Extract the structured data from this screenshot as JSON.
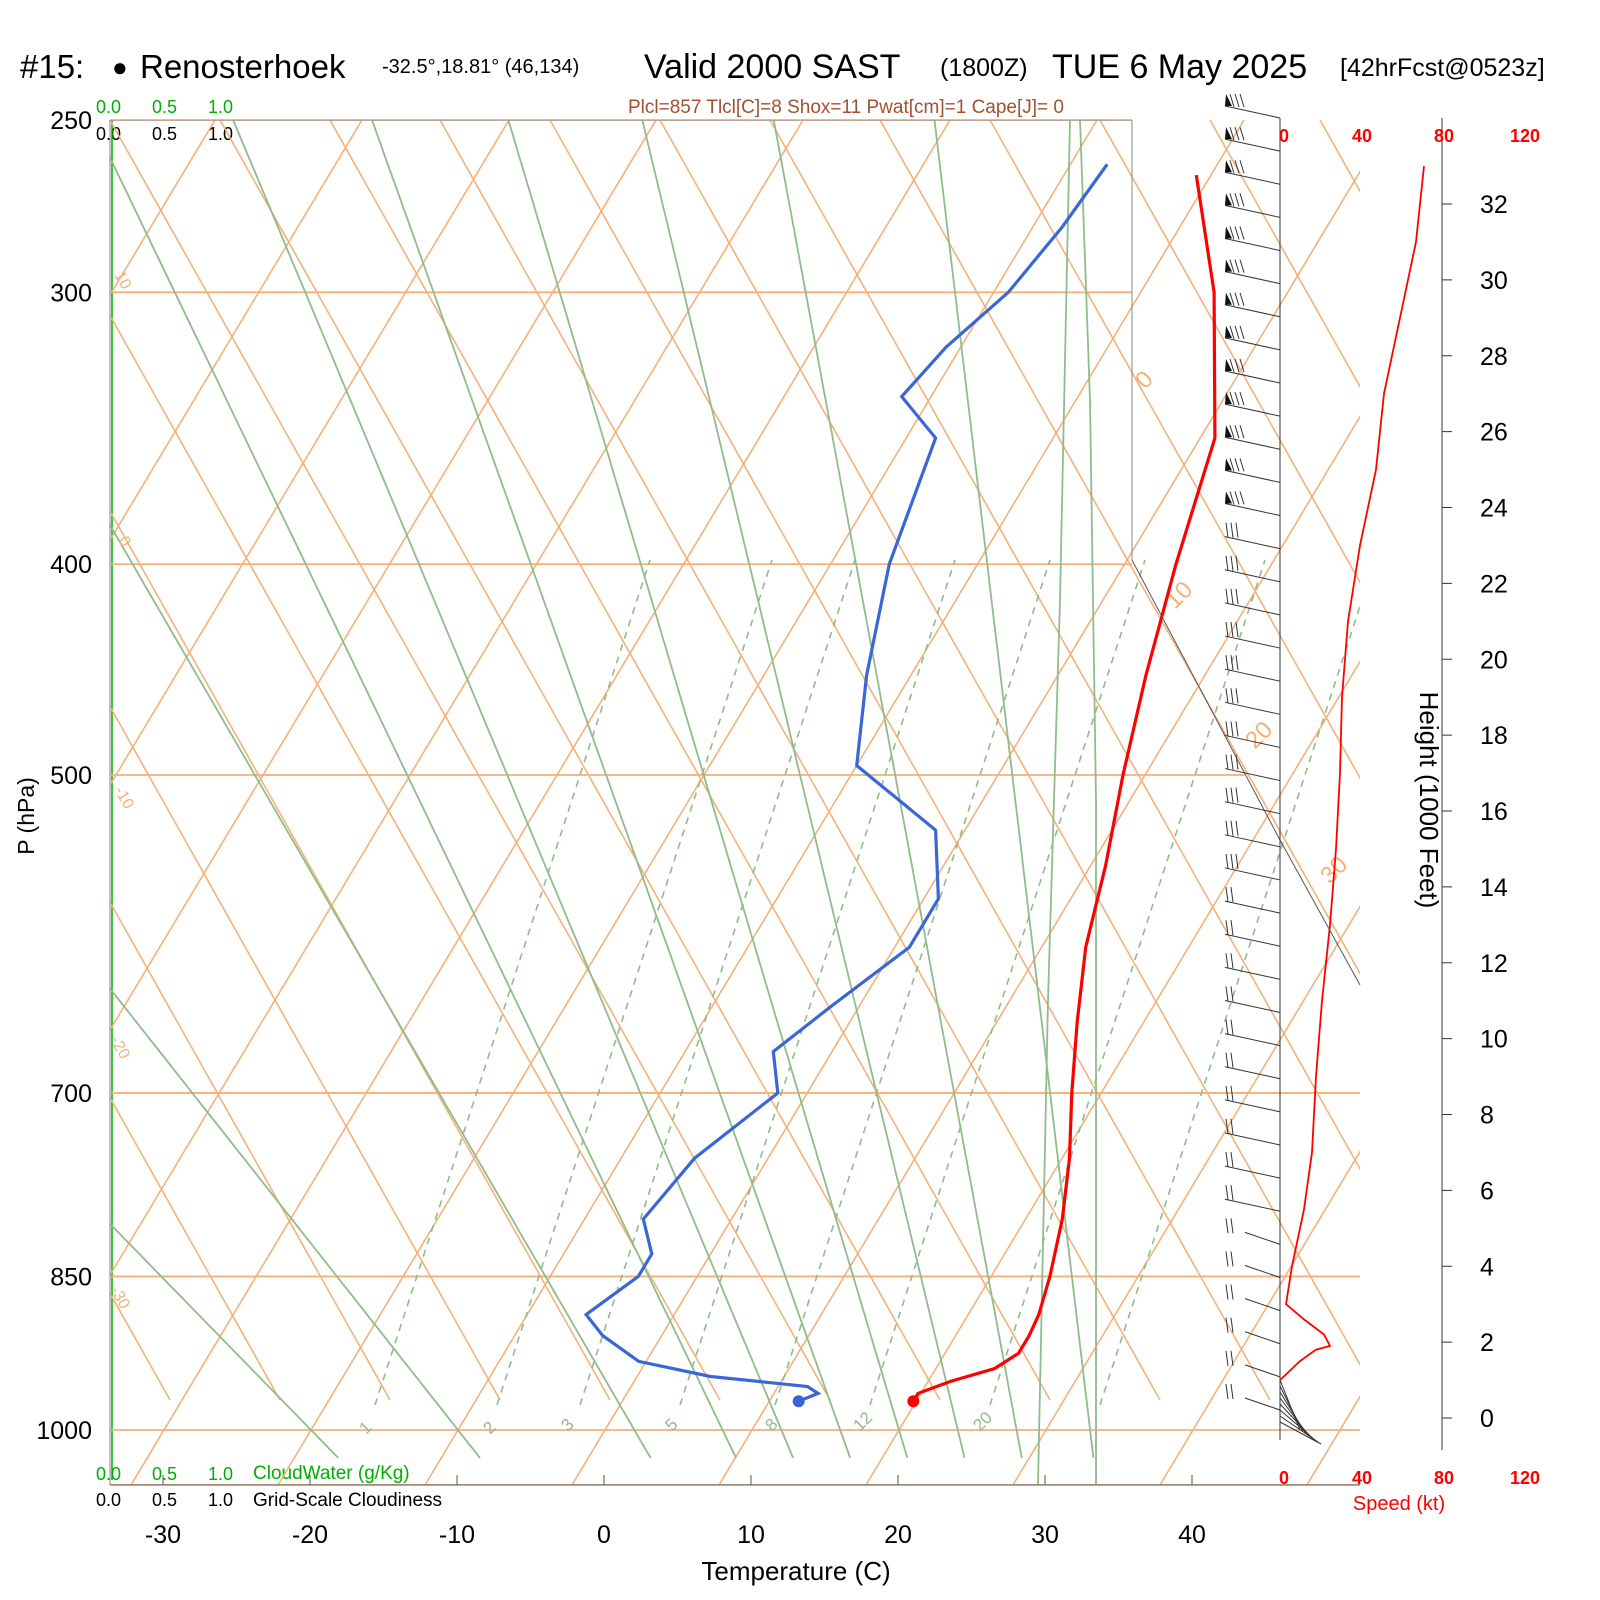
{
  "header": {
    "station_id": "#15:",
    "station_marker": "●",
    "station_name": "Renosterhoek",
    "coords": "-32.5°,18.81° (46,134)",
    "valid_label": "Valid 2000 SAST",
    "zulu": "(1800Z)",
    "date": "TUE 6 May 2025",
    "forecast": "[42hrFcst@0523z]"
  },
  "stats_line": "Plcl=857 Tlcl[C]=8 Shox=11 Pwat[cm]=1 Cape[J]= 0",
  "colors": {
    "temperature": "#ff0000",
    "dewpoint": "#3a66d6",
    "isotherm": "#f5b07a",
    "adiabat": "#8fbc8a",
    "mixing_ratio": "#8fbc8a",
    "stats": "#a0522d",
    "cloud_green": "#00b000",
    "speed_red": "#ff0000"
  },
  "cloud_scales": {
    "top_green": [
      "0.0",
      "0.5",
      "1.0"
    ],
    "top_black": [
      "0.0",
      "0.5",
      "1.0"
    ],
    "bottom_green": [
      "0.0",
      "0.5",
      "1.0"
    ],
    "bottom_green_label": "CloudWater (g/Kg)",
    "bottom_black": [
      "0.0",
      "0.5",
      "1.0"
    ],
    "bottom_black_label": "Grid-Scale Cloudiness"
  },
  "chart_data": {
    "type": "line",
    "subtype": "skew-T log-P sounding",
    "xlabel": "Temperature (C)",
    "ylabel": "P (hPa)",
    "xlim": [
      -33,
      47
    ],
    "pressure_range": [
      1000,
      250
    ],
    "x_ticks": [
      -30,
      -20,
      -10,
      0,
      10,
      20,
      30,
      40
    ],
    "p_ticks": [
      250,
      300,
      400,
      500,
      700,
      850,
      1000
    ],
    "isotherm_labels": [
      "10",
      "0",
      "-10",
      "-20",
      "-30",
      "0",
      "10",
      "20",
      "30"
    ],
    "mixing_ratio_labels": [
      "1",
      "2",
      "3",
      "5",
      "8",
      "12",
      "20"
    ],
    "series": [
      {
        "name": "Temperature",
        "points": [
          [
            19.8,
            970
          ],
          [
            19.8,
            962
          ],
          [
            21.5,
            950
          ],
          [
            24,
            937
          ],
          [
            25,
            922
          ],
          [
            25,
            905
          ],
          [
            24.8,
            885
          ],
          [
            24,
            850
          ],
          [
            22.5,
            800
          ],
          [
            20.5,
            750
          ],
          [
            18,
            700
          ],
          [
            15.5,
            650
          ],
          [
            13,
            600
          ],
          [
            11,
            550
          ],
          [
            8.5,
            500
          ],
          [
            6,
            450
          ],
          [
            3.5,
            400
          ],
          [
            1,
            350
          ],
          [
            -5,
            300
          ],
          [
            -11,
            265
          ]
        ]
      },
      {
        "name": "Dewpoint",
        "points": [
          [
            12,
            970
          ],
          [
            13,
            962
          ],
          [
            12,
            955
          ],
          [
            5,
            945
          ],
          [
            -0.5,
            930
          ],
          [
            -4,
            905
          ],
          [
            -6,
            885
          ],
          [
            -4,
            850
          ],
          [
            -4,
            830
          ],
          [
            -6,
            800
          ],
          [
            -5,
            750
          ],
          [
            -2,
            700
          ],
          [
            -4,
            670
          ],
          [
            -2,
            640
          ],
          [
            1,
            600
          ],
          [
            1,
            570
          ],
          [
            -2,
            530
          ],
          [
            -10,
            495
          ],
          [
            -13,
            450
          ],
          [
            -16,
            400
          ],
          [
            -18,
            350
          ],
          [
            -22,
            335
          ],
          [
            -21,
            318
          ],
          [
            -19,
            300
          ],
          [
            -18,
            280
          ],
          [
            -17.5,
            262
          ]
        ]
      }
    ],
    "speed_profile": {
      "xlabel": "Speed (kt)",
      "x_ticks": [
        "0",
        "40",
        "80",
        "120"
      ],
      "height_label": "Height (1000 Feet)",
      "height_ticks": [
        0,
        2,
        4,
        6,
        8,
        10,
        12,
        14,
        16,
        18,
        20,
        22,
        24,
        26,
        28,
        30,
        32
      ],
      "points": [
        [
          0,
          1.0
        ],
        [
          10,
          1.5
        ],
        [
          18,
          1.8
        ],
        [
          25,
          1.9
        ],
        [
          22,
          2.2
        ],
        [
          12,
          2.6
        ],
        [
          3,
          3.0
        ],
        [
          6,
          4.0
        ],
        [
          12,
          5.5
        ],
        [
          16,
          7
        ],
        [
          18,
          9
        ],
        [
          21,
          11
        ],
        [
          25,
          13
        ],
        [
          28,
          15
        ],
        [
          30,
          17
        ],
        [
          31,
          19
        ],
        [
          34,
          21
        ],
        [
          40,
          23
        ],
        [
          48,
          25
        ],
        [
          52,
          27
        ],
        [
          60,
          29
        ],
        [
          68,
          31
        ],
        [
          72,
          33
        ]
      ]
    },
    "wind_barbs": {
      "count": 40,
      "top_speed_kt": 55
    }
  }
}
